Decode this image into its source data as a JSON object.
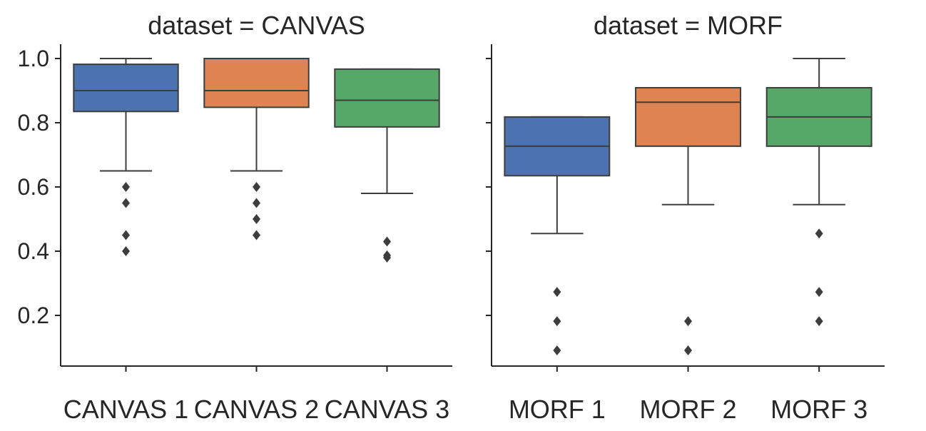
{
  "chart_data": [
    {
      "type": "box",
      "title": "dataset = CANVAS",
      "xlabel": "",
      "ylabel": "",
      "ylim": [
        0.04,
        1.045
      ],
      "yticks": [
        "0.2",
        "0.4",
        "0.6",
        "0.8",
        "1.0"
      ],
      "grid": false,
      "categories": [
        "CANVAS 1",
        "CANVAS 2",
        "CANVAS 3"
      ],
      "boxes": [
        {
          "color": "#4c72b0",
          "whisker_low": 0.65,
          "q1": 0.835,
          "median": 0.9,
          "q3": 0.982,
          "whisker_high": 1.0,
          "outliers": [
            0.6,
            0.55,
            0.45,
            0.4
          ]
        },
        {
          "color": "#dd8452",
          "whisker_low": 0.65,
          "q1": 0.848,
          "median": 0.9,
          "q3": 1.0,
          "whisker_high": 1.0,
          "outliers": [
            0.6,
            0.55,
            0.5,
            0.45
          ]
        },
        {
          "color": "#55a868",
          "whisker_low": 0.58,
          "q1": 0.787,
          "median": 0.87,
          "q3": 0.967,
          "whisker_high": 0.967,
          "outliers": [
            0.43,
            0.387,
            0.38
          ]
        }
      ]
    },
    {
      "type": "box",
      "title": "dataset = MORF",
      "xlabel": "",
      "ylabel": "",
      "ylim": [
        0.04,
        1.045
      ],
      "yticks": [
        "0.2",
        "0.4",
        "0.6",
        "0.8",
        "1.0"
      ],
      "grid": false,
      "categories": [
        "MORF 1",
        "MORF 2",
        "MORF 3"
      ],
      "boxes": [
        {
          "color": "#4c72b0",
          "whisker_low": 0.455,
          "q1": 0.635,
          "median": 0.727,
          "q3": 0.818,
          "whisker_high": 0.818,
          "outliers": [
            0.273,
            0.182,
            0.091
          ]
        },
        {
          "color": "#dd8452",
          "whisker_low": 0.545,
          "q1": 0.727,
          "median": 0.864,
          "q3": 0.909,
          "whisker_high": 0.909,
          "outliers": [
            0.182,
            0.091
          ]
        },
        {
          "color": "#55a868",
          "whisker_low": 0.545,
          "q1": 0.727,
          "median": 0.818,
          "q3": 0.909,
          "whisker_high": 1.0,
          "outliers": [
            0.455,
            0.273,
            0.182
          ]
        }
      ]
    }
  ]
}
